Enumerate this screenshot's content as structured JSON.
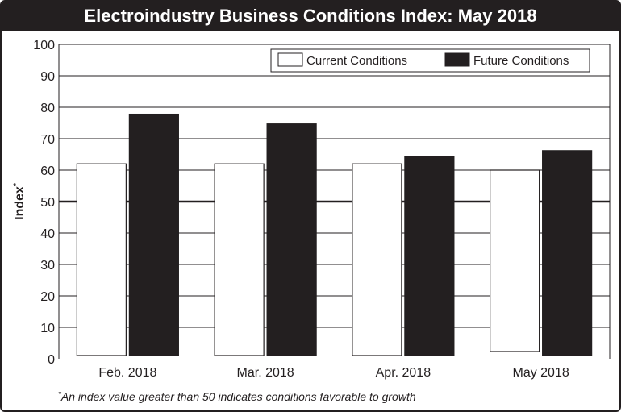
{
  "chart_data": {
    "type": "bar",
    "title": "Electroindustry Business Conditions Index: May 2018",
    "ylabel": "Index",
    "ylabel_marker": "*",
    "xlabel": "",
    "ylim": [
      0,
      100
    ],
    "yticks": [
      0,
      10,
      20,
      30,
      40,
      50,
      60,
      70,
      80,
      90,
      100
    ],
    "reference_line": 50,
    "categories": [
      "Feb. 2018",
      "Mar. 2018",
      "Apr. 2018",
      "May 2018"
    ],
    "series": [
      {
        "name": "Current Conditions",
        "color": "#ffffff",
        "values": [
          62,
          62,
          62,
          60
        ]
      },
      {
        "name": "Future Conditions",
        "color": "#231f20",
        "values": [
          77.8,
          74.7,
          64.3,
          66.2
        ]
      }
    ],
    "legend_position": "top-right",
    "footnote_marker": "*",
    "footnote": "An index value greater than 50 indicates conditions favorable to growth"
  },
  "colors": {
    "ink": "#231f20",
    "background": "#ffffff"
  }
}
